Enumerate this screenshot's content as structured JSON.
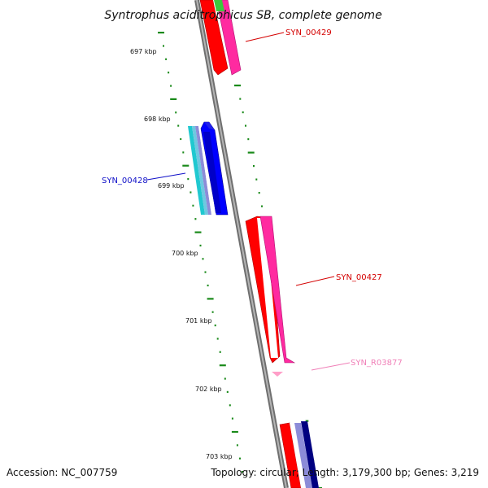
{
  "title": "Syntrophus aciditrophicus SB, complete genome",
  "accession": "Accession: NC_007759",
  "summary": "Topology: circular; Length: 3,179,300 bp; Genes: 3,219",
  "kbp_ticks": [
    "697 kbp",
    "698 kbp",
    "699 kbp",
    "700 kbp",
    "701 kbp",
    "702 kbp",
    "703 kbp"
  ],
  "gene_labels": [
    {
      "name": "SYN_00429",
      "color": "#d40000"
    },
    {
      "name": "SYN_00428",
      "color": "#1010c8"
    },
    {
      "name": "SYN_00427",
      "color": "#d40000"
    },
    {
      "name": "SYN_R03877",
      "color": "#f080b8"
    }
  ],
  "colors": {
    "backbone": "#888888",
    "tick_green": "#1a8a1a",
    "red": "#ff0000",
    "pink": "#ff2aa0",
    "blue": "#0000ff",
    "navy": "#000080",
    "cyan": "#20c8d0",
    "lavender": "#8c8cd8"
  }
}
